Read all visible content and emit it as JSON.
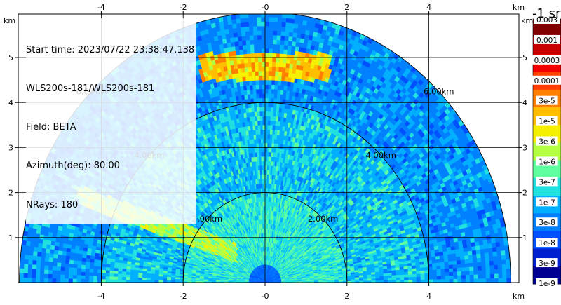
{
  "header": {
    "start_time": "Start time: 2023/07/22 23:38:47.138",
    "instrument": "WLS200s-181/WLS200s-181",
    "field": "Field: BETA",
    "azimuth": "Azimuth(deg): 80.00",
    "nrays": "NRays: 180"
  },
  "colorbar": {
    "title": "-1 sr",
    "top_label": "0.003",
    "labels": [
      "0.001",
      "0.0003",
      "0.0001",
      "3e-5",
      "1e-5",
      "3e-6",
      "1e-6",
      "3e-7",
      "1e-7",
      "3e-8",
      "1e-8",
      "3e-9",
      "1e-9"
    ],
    "colors": [
      "#800000",
      "#c80000",
      "#f00000",
      "#ff4000",
      "#ff8000",
      "#ffbf00",
      "#f5f000",
      "#b4ff40",
      "#60ffa0",
      "#20e0e0",
      "#00b0ff",
      "#0080ff",
      "#0050ff",
      "#0020d0",
      "#000090"
    ]
  },
  "chart_data": {
    "type": "heatmap",
    "description_type": "rhi_scan_radial",
    "x_unit": "km",
    "y_unit": "km",
    "xlim": [
      -6.1,
      6.1
    ],
    "ylim": [
      0,
      5.9
    ],
    "x_ticks": [
      -4,
      -2,
      0,
      2,
      4
    ],
    "y_ticks": [
      1,
      2,
      3,
      4,
      5
    ],
    "x_tick_labels": [
      "-4",
      "-2",
      "-0",
      "2",
      "4"
    ],
    "y_tick_labels": [
      "1",
      "2",
      "3",
      "4",
      "5"
    ],
    "axis_unit_label": "km",
    "grid": true,
    "range_rings_km": [
      2,
      4,
      6
    ],
    "range_ring_labels": [
      "2.00km",
      "4.00km",
      "6.00km"
    ],
    "max_range_km": 6,
    "features": [
      {
        "name": "cloud-layer",
        "x_range_km": [
          -1.6,
          1.6
        ],
        "height_km": [
          4.5,
          5.1
        ],
        "value": "1e-5 to 0.0001"
      },
      {
        "name": "aerosol-plume",
        "x_range_km": [
          -4.6,
          -0.7
        ],
        "height_km": [
          0.7,
          2.0
        ],
        "value": "1e-6 to 3e-6"
      }
    ]
  }
}
